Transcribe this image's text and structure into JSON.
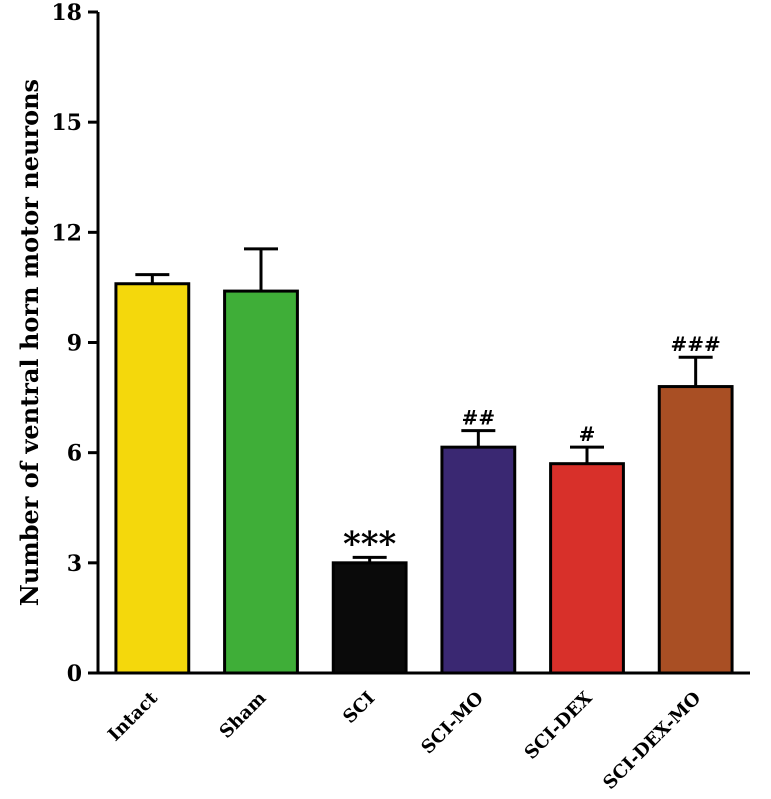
{
  "chart_data": {
    "type": "bar",
    "title": "",
    "xlabel": "",
    "ylabel": "Number of ventral horn motor neurons",
    "ylim": [
      0,
      18
    ],
    "yticks": [
      0,
      3,
      6,
      9,
      12,
      15,
      18
    ],
    "grid": false,
    "categories": [
      "Intact",
      "Sham",
      "SCI",
      "SCI-MO",
      "SCI-DEX",
      "SCI-DEX-MO"
    ],
    "values": [
      10.6,
      10.4,
      3.0,
      6.15,
      5.7,
      7.8
    ],
    "errors": [
      0.25,
      1.15,
      0.15,
      0.45,
      0.45,
      0.8
    ],
    "annotations": [
      "",
      "",
      "***",
      "##",
      "#",
      "###"
    ],
    "colors": [
      "#f4d80c",
      "#3fae38",
      "#0a0a0a",
      "#3a2872",
      "#d8302a",
      "#a94f24"
    ]
  }
}
